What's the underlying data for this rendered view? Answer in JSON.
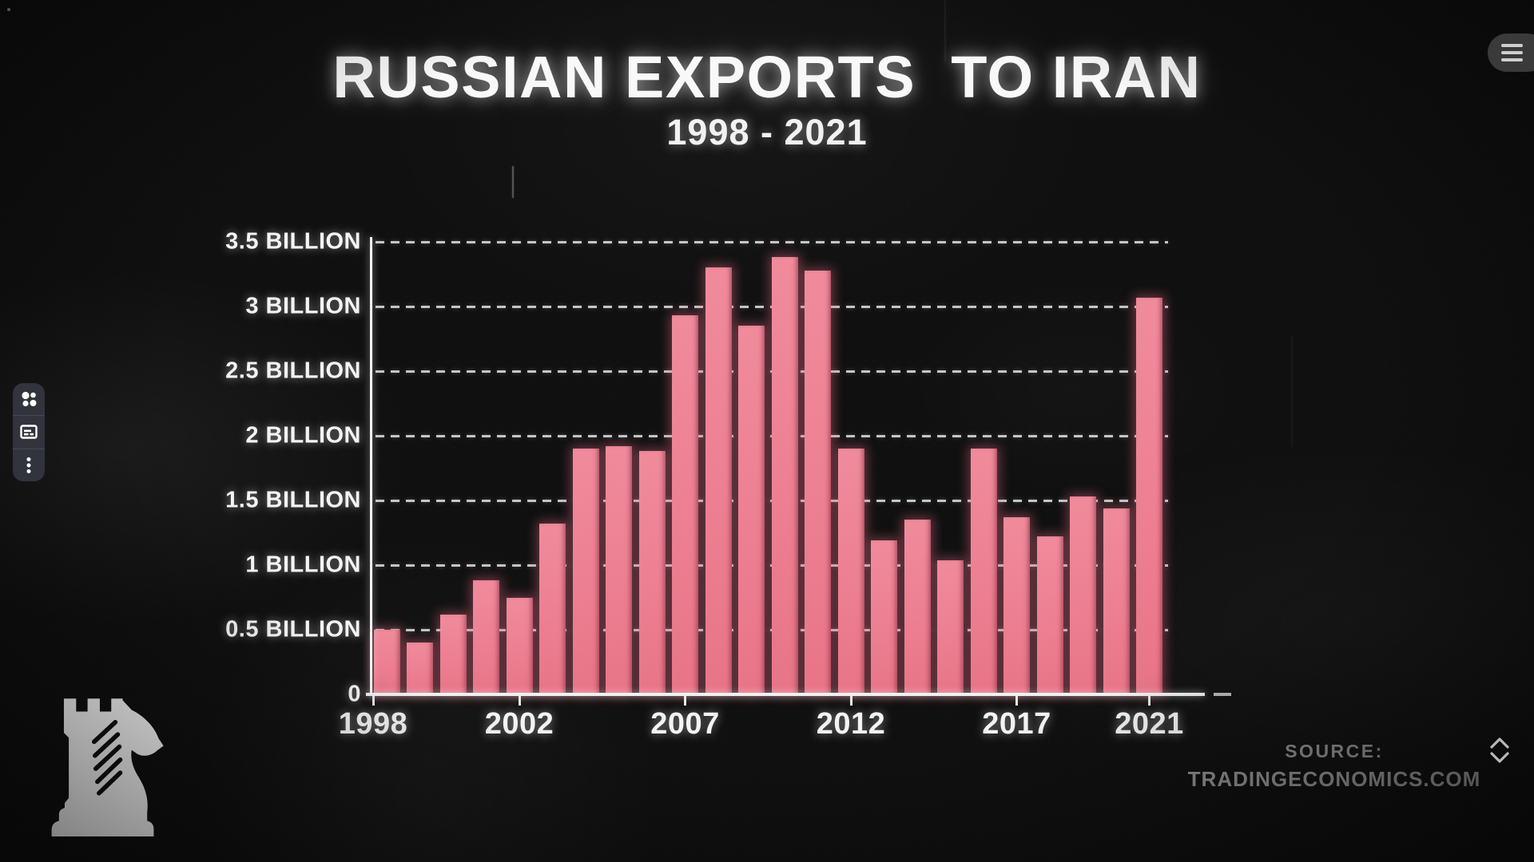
{
  "frame": {
    "title": "RUSSIAN EXPORTS  TO IRAN",
    "subtitle": "1998 - 2021",
    "source_label": "SOURCE:",
    "source_name": "TRADINGECONOMICS.COM"
  },
  "chart_data": {
    "type": "bar",
    "title": "RUSSIAN EXPORTS TO IRAN",
    "subtitle": "1998 - 2021",
    "unit": "USD billions",
    "categories": [
      1998,
      1999,
      2000,
      2001,
      2002,
      2003,
      2004,
      2005,
      2006,
      2007,
      2008,
      2009,
      2010,
      2011,
      2012,
      2013,
      2014,
      2015,
      2016,
      2017,
      2018,
      2019,
      2020,
      2021
    ],
    "values": [
      0.5,
      0.4,
      0.62,
      0.88,
      0.75,
      1.32,
      1.9,
      1.92,
      1.88,
      2.93,
      3.3,
      2.85,
      3.38,
      3.28,
      1.9,
      1.19,
      1.35,
      1.04,
      1.9,
      1.37,
      1.22,
      1.53,
      1.44,
      3.07
    ],
    "ylim": [
      0,
      3.5
    ],
    "ytick_values": [
      0,
      0.5,
      1,
      1.5,
      2,
      2.5,
      3,
      3.5
    ],
    "ytick_labels": [
      "0",
      "0.5 BILLION",
      "1 BILLION",
      "1.5 BILLION",
      "2 BILLION",
      "2.5 BILLION",
      "3 BILLION",
      "3.5 BILLION"
    ],
    "xtick_labels": [
      "1998",
      "2002",
      "2007",
      "2012",
      "2017",
      "2021"
    ],
    "grid": "horizontal dashed, behind bars",
    "legend": "none",
    "bar_color": "#ee7e91",
    "background_color": "#0c0c0c",
    "source": "TRADINGECONOMICS.COM"
  },
  "toolbar": {
    "buttons": [
      {
        "icon": "apps-grid"
      },
      {
        "icon": "subtitles-card"
      },
      {
        "icon": "kebab-menu"
      }
    ]
  },
  "controls": {
    "menu": "hamburger",
    "scroll": "chevron-up-down"
  },
  "logo": {
    "icon": "rook-knight-chess"
  }
}
